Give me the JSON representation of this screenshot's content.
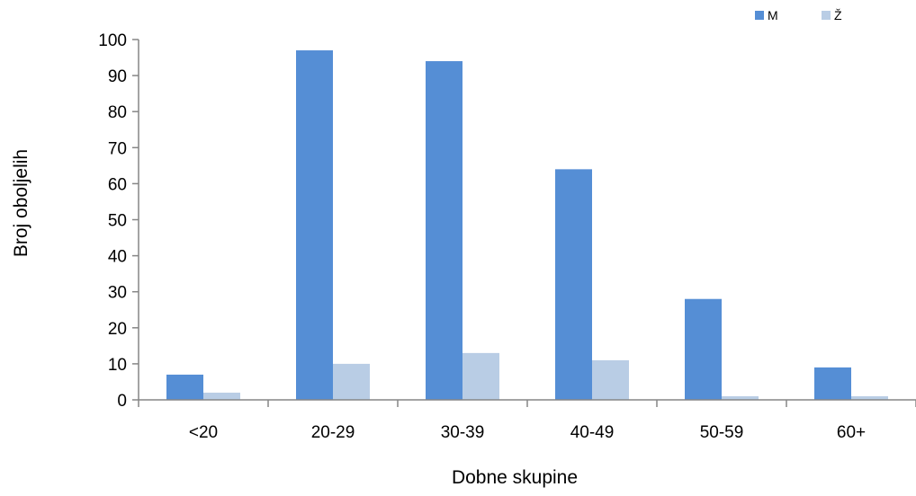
{
  "chart_data": {
    "type": "bar",
    "title": "",
    "xlabel": "Dobne skupine",
    "ylabel": "Broj oboljelih",
    "categories": [
      "<20",
      "20-29",
      "30-39",
      "40-49",
      "50-59",
      "60+"
    ],
    "series": [
      {
        "name": "M",
        "values": [
          7,
          97,
          94,
          64,
          28,
          9
        ],
        "color": "#558ED5"
      },
      {
        "name": "Ž",
        "values": [
          2,
          10,
          13,
          11,
          1,
          1
        ],
        "color": "#B9CDE5"
      }
    ],
    "ylim": [
      0,
      100
    ],
    "yticks": [
      0,
      10,
      20,
      30,
      40,
      50,
      60,
      70,
      80,
      90,
      100
    ],
    "grid": false,
    "legend_position": "top-right"
  }
}
